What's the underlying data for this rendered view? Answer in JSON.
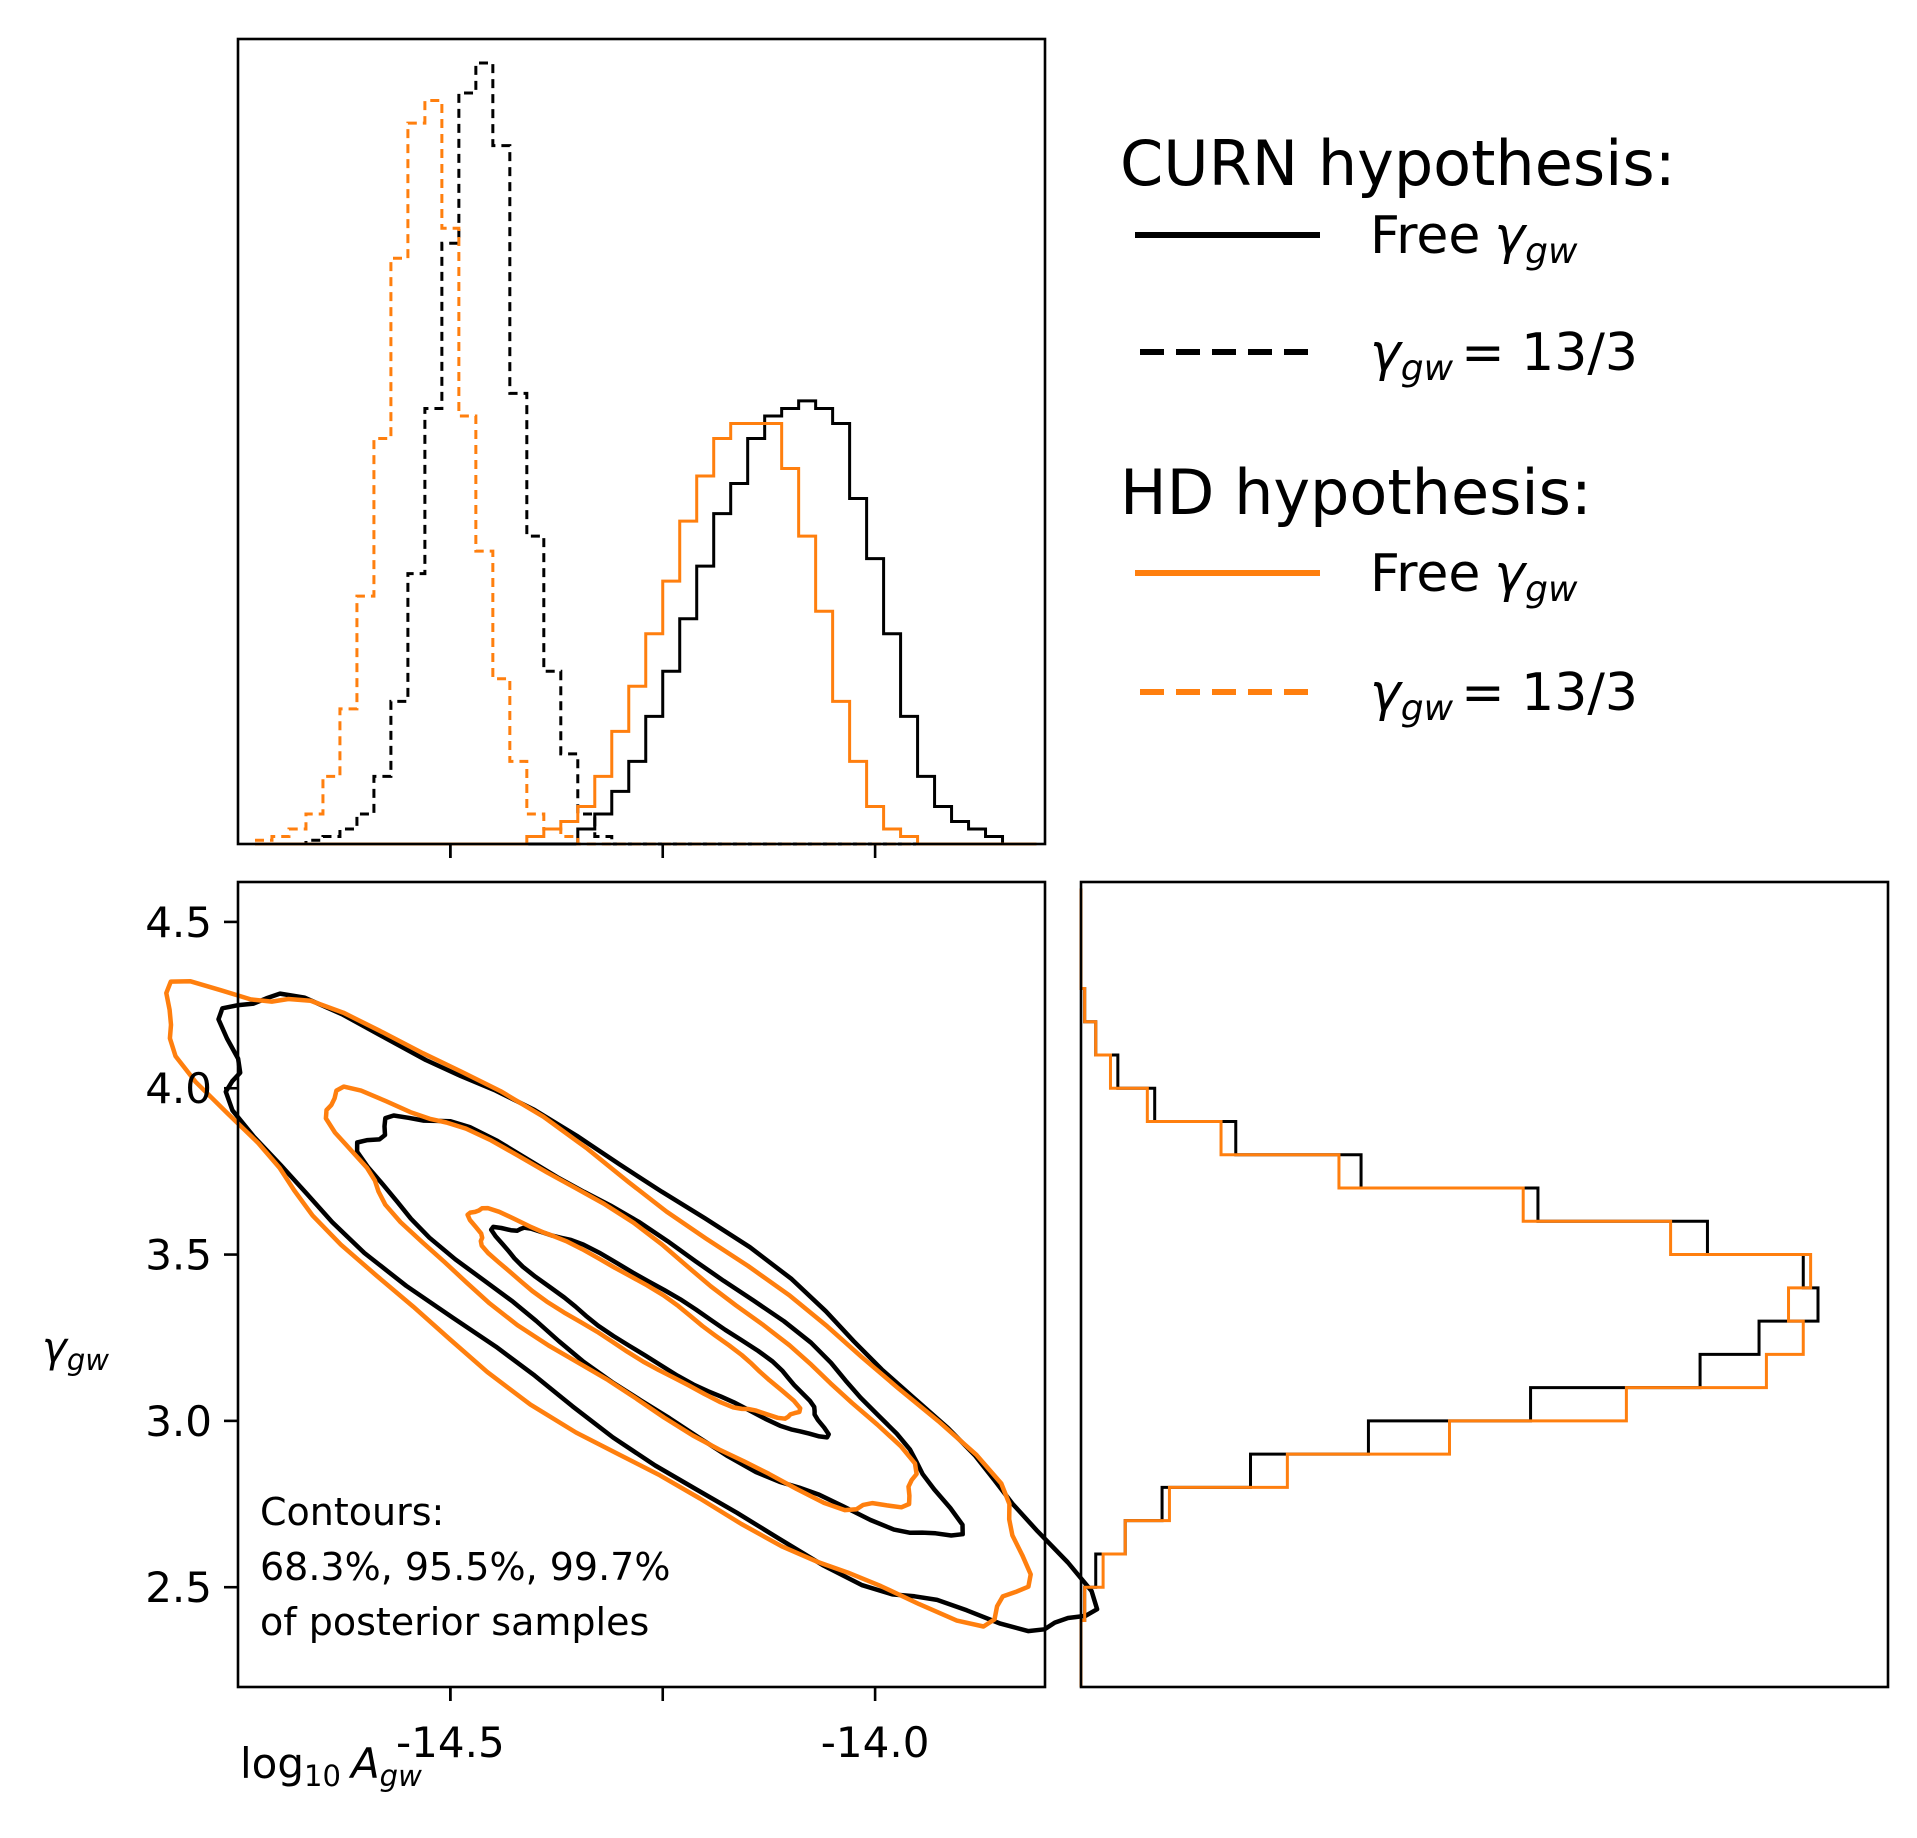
{
  "colors": {
    "curn": "#000000",
    "hd": "#ff7f0e"
  },
  "chart_data": [
    {
      "type": "histogram",
      "panel": "log10_A_gw marginal",
      "xlim": [
        -14.75,
        -13.8
      ],
      "bins": [
        -14.72,
        -14.7,
        -14.68,
        -14.66,
        -14.64,
        -14.62,
        -14.6,
        -14.58,
        -14.56,
        -14.54,
        -14.52,
        -14.5,
        -14.48,
        -14.46,
        -14.44,
        -14.42,
        -14.4,
        -14.38,
        -14.36,
        -14.34,
        -14.32,
        -14.3,
        -14.28,
        -14.26,
        -14.24,
        -14.22,
        -14.2,
        -14.18,
        -14.16,
        -14.14,
        -14.12,
        -14.1,
        -14.08,
        -14.06,
        -14.04,
        -14.02,
        -14.0,
        -13.98,
        -13.96,
        -13.94,
        -13.92,
        -13.9,
        -13.88,
        -13.86,
        -13.84,
        -13.82
      ],
      "series": [
        {
          "name": "CURN, Free γ_gw",
          "style": "solid",
          "color": "curn",
          "values": [
            0,
            0,
            0,
            0,
            0,
            0,
            0,
            0,
            0,
            0,
            0,
            0,
            0,
            0,
            0,
            0,
            0,
            0,
            0,
            0.02,
            0.04,
            0.07,
            0.11,
            0.17,
            0.23,
            0.3,
            0.37,
            0.44,
            0.48,
            0.54,
            0.57,
            0.58,
            0.59,
            0.58,
            0.56,
            0.46,
            0.38,
            0.28,
            0.17,
            0.09,
            0.05,
            0.03,
            0.02,
            0.01,
            0,
            0
          ]
        },
        {
          "name": "CURN, γ_gw = 13/3",
          "style": "dashed",
          "color": "curn",
          "values": [
            0,
            0,
            0,
            0.005,
            0.01,
            0.02,
            0.04,
            0.09,
            0.19,
            0.36,
            0.58,
            0.8,
            1.0,
            1.04,
            0.93,
            0.6,
            0.41,
            0.23,
            0.12,
            0.04,
            0.01,
            0,
            0,
            0,
            0,
            0,
            0,
            0,
            0,
            0,
            0,
            0,
            0,
            0,
            0,
            0,
            0,
            0,
            0,
            0,
            0,
            0,
            0,
            0,
            0,
            0
          ]
        },
        {
          "name": "HD, Free γ_gw",
          "style": "solid",
          "color": "hd",
          "values": [
            0,
            0,
            0,
            0,
            0,
            0,
            0,
            0,
            0,
            0,
            0,
            0,
            0,
            0,
            0,
            0,
            0.01,
            0.02,
            0.03,
            0.05,
            0.09,
            0.15,
            0.21,
            0.28,
            0.35,
            0.43,
            0.49,
            0.54,
            0.56,
            0.56,
            0.56,
            0.5,
            0.41,
            0.31,
            0.19,
            0.11,
            0.05,
            0.02,
            0.01,
            0,
            0,
            0,
            0,
            0,
            0,
            0
          ]
        },
        {
          "name": "HD, γ_gw = 13/3",
          "style": "dashed",
          "color": "hd",
          "values": [
            0.005,
            0.01,
            0.02,
            0.04,
            0.09,
            0.18,
            0.33,
            0.54,
            0.78,
            0.96,
            0.99,
            0.82,
            0.57,
            0.39,
            0.22,
            0.11,
            0.04,
            0.02,
            0.01,
            0,
            0,
            0,
            0,
            0,
            0,
            0,
            0,
            0,
            0,
            0,
            0,
            0,
            0,
            0,
            0,
            0,
            0,
            0,
            0,
            0,
            0,
            0,
            0,
            0,
            0,
            0
          ]
        }
      ]
    },
    {
      "type": "contour",
      "panel": "log10_A_gw vs γ_gw",
      "xlabel": "log₁₀ A_gw",
      "ylabel": "γ_gw",
      "xlim": [
        -14.75,
        -13.8
      ],
      "ylim": [
        2.2,
        4.62
      ],
      "xticks": [
        "-14.5",
        "-14.0"
      ],
      "xtick_values": [
        -14.5,
        -14.0
      ],
      "yticks": [
        "2.5",
        "3.0",
        "3.5",
        "4.0",
        "4.5"
      ],
      "ytick_values": [
        2.5,
        3.0,
        3.5,
        4.0,
        4.5
      ],
      "contour_levels": [
        "68.3%",
        "95.5%",
        "99.7%"
      ],
      "series": [
        {
          "name": "CURN, Free γ_gw",
          "color": "curn",
          "contours": [
            {
              "level": "68.3%",
              "center": [
                -14.25,
                3.28
              ],
              "width": 0.19,
              "height": 0.3,
              "tilt": -34,
              "rx": 0.08,
              "ry": 0.78
            },
            {
              "level": "95.5%",
              "center": [
                -14.26,
                3.3
              ],
              "width": 0.34,
              "height": 0.6,
              "tilt": -34,
              "rx": 0.16,
              "ry": 1.3
            },
            {
              "level": "99.7%",
              "center": [
                -14.28,
                3.32
              ],
              "width": 0.5,
              "height": 0.9,
              "tilt": -34,
              "rx": 0.25,
              "ry": 1.92
            }
          ]
        },
        {
          "name": "HD, Free γ_gw",
          "color": "hd",
          "contours": [
            {
              "level": "68.3%",
              "center": [
                -14.29,
                3.32
              ],
              "width": 0.19,
              "height": 0.3,
              "tilt": -34,
              "rx": 0.08,
              "ry": 0.78
            },
            {
              "level": "95.5%",
              "center": [
                -14.3,
                3.35
              ],
              "width": 0.34,
              "height": 0.6,
              "tilt": -34,
              "rx": 0.16,
              "ry": 1.32
            },
            {
              "level": "99.7%",
              "center": [
                -14.32,
                3.36
              ],
              "width": 0.5,
              "height": 0.9,
              "tilt": -34,
              "rx": 0.27,
              "ry": 2.02
            }
          ]
        }
      ]
    },
    {
      "type": "histogram",
      "panel": "γ_gw marginal (horizontal)",
      "orientation": "horizontal",
      "ylim": [
        2.2,
        4.62
      ],
      "bin_edges": [
        2.2,
        2.3,
        2.4,
        2.5,
        2.6,
        2.7,
        2.8,
        2.9,
        3.0,
        3.1,
        3.2,
        3.3,
        3.4,
        3.5,
        3.6,
        3.7,
        3.8,
        3.9,
        4.0,
        4.1,
        4.2,
        4.3,
        4.4,
        4.5,
        4.6
      ],
      "series": [
        {
          "name": "CURN, Free γ_gw",
          "style": "solid",
          "color": "curn",
          "values": [
            0,
            0,
            0.005,
            0.02,
            0.06,
            0.11,
            0.23,
            0.39,
            0.61,
            0.84,
            0.92,
            1.0,
            0.98,
            0.85,
            0.62,
            0.38,
            0.21,
            0.1,
            0.05,
            0.02,
            0.005,
            0,
            0,
            0
          ]
        },
        {
          "name": "HD, Free γ_gw",
          "style": "solid",
          "color": "hd",
          "values": [
            0,
            0,
            0.005,
            0.03,
            0.06,
            0.12,
            0.28,
            0.5,
            0.74,
            0.93,
            0.98,
            0.96,
            0.99,
            0.8,
            0.6,
            0.35,
            0.19,
            0.09,
            0.04,
            0.02,
            0.005,
            0,
            0,
            0
          ]
        }
      ]
    }
  ],
  "legend": {
    "curn_title": "CURN hypothesis:",
    "hd_title": "HD hypothesis:",
    "free_label": "Free",
    "gamma_symbol": "γ",
    "gamma_sub": "gw",
    "fixed_value": "= 13/3"
  },
  "axes": {
    "xlabel_prefix": "log",
    "xlabel_base": "10",
    "xlabel_var": "A",
    "xlabel_sub": "gw",
    "ylabel_var": "γ",
    "ylabel_sub": "gw"
  },
  "annotation": {
    "line1": "Contours:",
    "line2": "68.3%, 95.5%, 99.7%",
    "line3": "of posterior samples"
  }
}
